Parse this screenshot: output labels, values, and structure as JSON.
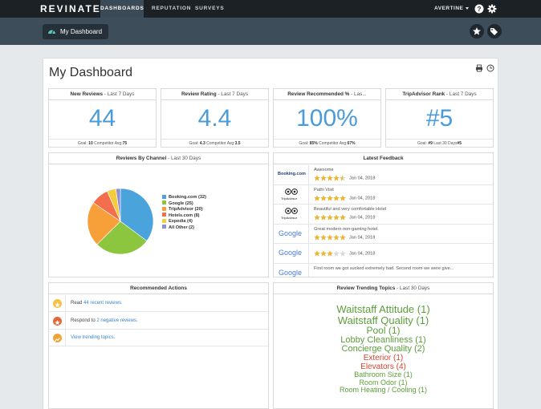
{
  "nav": {
    "logo": "REVINATE",
    "tabs": [
      "DASHBOARDS",
      "REPUTATION",
      "SURVEYS"
    ],
    "user": "AVERTINE"
  },
  "subbar": {
    "dashboard_button": "My Dashboard"
  },
  "page": {
    "title": "My Dashboard"
  },
  "kpis": [
    {
      "title": "New Reviews",
      "period": " - Last 7 Days",
      "value": "44",
      "goal_label": "Goal: ",
      "goal": "10",
      "comp_label": " Competitor Avg:",
      "comp": "75"
    },
    {
      "title": "Review Rating",
      "period": " - Last 7 Days",
      "value": "4.4",
      "goal_label": "Goal: ",
      "goal": "4.3",
      "comp_label": " Competitor Avg:",
      "comp": "3.5"
    },
    {
      "title": "Review Recommended %",
      "period": " - Las...",
      "value": "100%",
      "goal_label": "Goal: ",
      "goal": "85%",
      "comp_label": " Competitor Avg:",
      "comp": "67%"
    },
    {
      "title": "TripAdvisor Rank",
      "period": " - Last 7 Days",
      "value": "#5",
      "goal_label": "Goal: ",
      "goal": "#9",
      "comp_label": " Last 30 Days",
      "comp": "#5"
    }
  ],
  "channels": {
    "title": "Reviews By Channel",
    "period": " - Last 30 Days",
    "legend": [
      "Booking.com (32)",
      "Google (25)",
      "TripAdvisor (20)",
      "Hotels.com (8)",
      "Expedia (4)",
      "All Other (2)"
    ]
  },
  "chart_data": {
    "type": "pie",
    "categories": [
      "Booking.com",
      "Google",
      "TripAdvisor",
      "Hotels.com",
      "Expedia",
      "All Other"
    ],
    "values": [
      32,
      25,
      20,
      8,
      4,
      2
    ],
    "colors": [
      "#4aa3db",
      "#8cc63f",
      "#f7a03a",
      "#f26e4d",
      "#f5cc3b",
      "#8f8fd6"
    ],
    "title": "Reviews By Channel",
    "legend_position": "right"
  },
  "feedback": {
    "title": "Latest Feedback",
    "items": [
      {
        "source": "Booking.com",
        "text": "Awesome",
        "rating": 4.5,
        "date": "Jan 04, 2018"
      },
      {
        "source": "TripAdvisor",
        "text": "Pathi Visit",
        "rating": 5,
        "date": "Jan 04, 2018"
      },
      {
        "source": "TripAdvisor",
        "text": "Beautiful and very comfortable Hotel",
        "rating": 5,
        "date": "Jan 04, 2018"
      },
      {
        "source": "Google",
        "text": "Great modern non-gaming hotel.",
        "rating": 5,
        "date": "Jan 04, 2018"
      },
      {
        "source": "Google",
        "text": "",
        "rating": 3,
        "date": "Jan 04, 2018"
      },
      {
        "source": "Google",
        "text": "First room we got sucked extremely bad. Second room we were give...",
        "rating": 0,
        "date": ""
      }
    ]
  },
  "actions": {
    "title": "Recommended Actions",
    "items": [
      {
        "prefix": "Read ",
        "link": "44 recent reviews.",
        "color": "#f5c242"
      },
      {
        "prefix": "Respond to ",
        "link": "2 negative reviews.",
        "color": "#e5683c"
      },
      {
        "prefix": "",
        "link": "View trending topics.",
        "color": "#f0a33a"
      }
    ]
  },
  "topics": {
    "title": "Review Trending Topics",
    "period": " - Last 30 Days",
    "items": [
      {
        "label": "Waitstaff Attitude (1)",
        "color": "#5a9e3a",
        "size": 13
      },
      {
        "label": "Waitstaff Quality (1)",
        "color": "#5a9e3a",
        "size": 13
      },
      {
        "label": "Pool (1)",
        "color": "#5a9e3a",
        "size": 12
      },
      {
        "label": "Lobby Cleanliness (1)",
        "color": "#5a9e3a",
        "size": 11
      },
      {
        "label": "Concierge Quality (2)",
        "color": "#5a9e3a",
        "size": 11
      },
      {
        "label": "Exterior (1)",
        "color": "#d2452f",
        "size": 10
      },
      {
        "label": "Elevators (4)",
        "color": "#d2452f",
        "size": 10
      },
      {
        "label": "Bathroom Size (1)",
        "color": "#5a9e3a",
        "size": 9
      },
      {
        "label": "Room Odor (1)",
        "color": "#5a9e3a",
        "size": 9
      },
      {
        "label": "Room Heating / Cooling (1)",
        "color": "#5a9e3a",
        "size": 9
      }
    ]
  }
}
